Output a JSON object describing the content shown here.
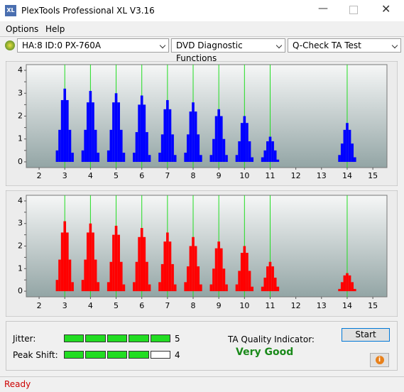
{
  "window": {
    "title": "PlexTools Professional XL V3.16"
  },
  "menu": [
    "Options",
    "Help"
  ],
  "toolbar": {
    "drive": "HA:8 ID:0  PX-760A",
    "function": "DVD Diagnostic Functions",
    "test": "Q-Check TA Test"
  },
  "chart_data": [
    {
      "type": "bar",
      "color": "#0000ff",
      "marker_color": "#22dd22",
      "x": [
        2.7,
        2.8,
        2.9,
        3,
        3.1,
        3.2,
        3.3,
        3.7,
        3.8,
        3.9,
        4,
        4.1,
        4.2,
        4.3,
        4.7,
        4.8,
        4.9,
        5,
        5.1,
        5.2,
        5.3,
        5.7,
        5.8,
        5.9,
        6,
        6.1,
        6.2,
        6.3,
        6.7,
        6.8,
        6.9,
        7,
        7.1,
        7.2,
        7.3,
        7.7,
        7.8,
        7.9,
        8,
        8.1,
        8.2,
        8.3,
        8.7,
        8.8,
        8.9,
        9,
        9.1,
        9.2,
        9.3,
        9.7,
        9.8,
        9.9,
        10,
        10.1,
        10.2,
        10.3,
        10.7,
        10.8,
        10.9,
        11,
        11.1,
        11.2,
        11.3,
        13.7,
        13.8,
        13.9,
        14,
        14.1,
        14.2,
        14.3
      ],
      "values": [
        0.5,
        1.4,
        2.7,
        3.2,
        2.7,
        1.4,
        0.4,
        0.5,
        1.4,
        2.6,
        3.1,
        2.6,
        1.4,
        0.4,
        0.5,
        1.4,
        2.6,
        3.0,
        2.6,
        1.4,
        0.4,
        0.4,
        1.3,
        2.5,
        2.9,
        2.5,
        1.3,
        0.3,
        0.4,
        1.2,
        2.3,
        2.7,
        2.3,
        1.2,
        0.3,
        0.4,
        1.2,
        2.2,
        2.6,
        2.2,
        1.2,
        0.3,
        0.3,
        1.0,
        2.0,
        2.3,
        2.0,
        1.0,
        0.3,
        0.3,
        0.9,
        1.7,
        2.0,
        1.7,
        0.9,
        0.2,
        0.2,
        0.5,
        0.9,
        1.1,
        0.9,
        0.5,
        0.1,
        0.3,
        0.8,
        1.4,
        1.7,
        1.4,
        0.8,
        0.2
      ],
      "xlim": [
        1.5,
        15.55
      ],
      "ylim": [
        -0.25,
        4.25
      ],
      "xticks": [
        2,
        3,
        4,
        5,
        6,
        7,
        8,
        9,
        10,
        11,
        12,
        13,
        14,
        15
      ],
      "yticks": [
        0,
        0.5,
        1,
        1.5,
        2,
        2.5,
        3,
        3.5,
        4
      ],
      "marker_lines": [
        3,
        4,
        5,
        6,
        7,
        8,
        9,
        10,
        11,
        14
      ]
    },
    {
      "type": "bar",
      "color": "#ff0000",
      "marker_color": "#22dd22",
      "x": [
        2.7,
        2.8,
        2.9,
        3,
        3.1,
        3.2,
        3.3,
        3.7,
        3.8,
        3.9,
        4,
        4.1,
        4.2,
        4.3,
        4.7,
        4.8,
        4.9,
        5,
        5.1,
        5.2,
        5.3,
        5.7,
        5.8,
        5.9,
        6,
        6.1,
        6.2,
        6.3,
        6.7,
        6.8,
        6.9,
        7,
        7.1,
        7.2,
        7.3,
        7.7,
        7.8,
        7.9,
        8,
        8.1,
        8.2,
        8.3,
        8.7,
        8.8,
        8.9,
        9,
        9.1,
        9.2,
        9.3,
        9.7,
        9.8,
        9.9,
        10,
        10.1,
        10.2,
        10.3,
        10.7,
        10.8,
        10.9,
        11,
        11.1,
        11.2,
        11.3,
        13.7,
        13.8,
        13.9,
        14,
        14.1,
        14.2,
        14.3
      ],
      "values": [
        0.5,
        1.4,
        2.6,
        3.1,
        2.6,
        1.4,
        0.4,
        0.5,
        1.4,
        2.6,
        3.0,
        2.6,
        1.4,
        0.4,
        0.4,
        1.3,
        2.5,
        2.9,
        2.5,
        1.3,
        0.3,
        0.4,
        1.3,
        2.4,
        2.8,
        2.4,
        1.3,
        0.3,
        0.4,
        1.2,
        2.2,
        2.6,
        2.2,
        1.2,
        0.3,
        0.4,
        1.1,
        2.0,
        2.4,
        2.0,
        1.1,
        0.3,
        0.3,
        1.0,
        1.9,
        2.2,
        1.9,
        1.0,
        0.3,
        0.3,
        0.9,
        1.7,
        2.0,
        1.7,
        0.9,
        0.2,
        0.2,
        0.6,
        1.1,
        1.3,
        1.1,
        0.6,
        0.2,
        0.1,
        0.4,
        0.7,
        0.8,
        0.7,
        0.4,
        0.1
      ],
      "xlim": [
        1.5,
        15.55
      ],
      "ylim": [
        -0.25,
        4.25
      ],
      "xticks": [
        2,
        3,
        4,
        5,
        6,
        7,
        8,
        9,
        10,
        11,
        12,
        13,
        14,
        15
      ],
      "yticks": [
        0,
        0.5,
        1,
        1.5,
        2,
        2.5,
        3,
        3.5,
        4
      ],
      "marker_lines": [
        3,
        4,
        5,
        6,
        7,
        8,
        9,
        10,
        11,
        14
      ]
    }
  ],
  "results": {
    "jitter": {
      "label": "Jitter:",
      "value": 5
    },
    "peak_shift": {
      "label": "Peak Shift:",
      "value": 4
    },
    "quality": {
      "label": "TA Quality Indicator:",
      "value": "Very Good"
    }
  },
  "buttons": {
    "start": "Start"
  },
  "status": "Ready"
}
